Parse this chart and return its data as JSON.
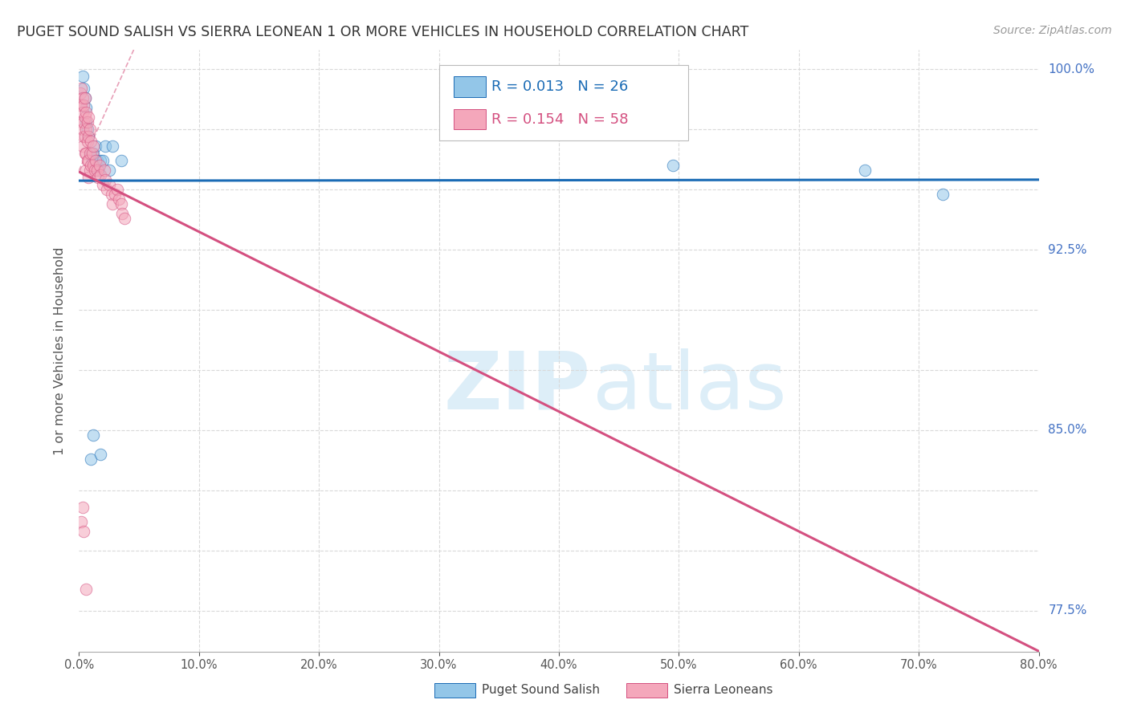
{
  "title": "PUGET SOUND SALISH VS SIERRA LEONEAN 1 OR MORE VEHICLES IN HOUSEHOLD CORRELATION CHART",
  "source": "Source: ZipAtlas.com",
  "ylabel": "1 or more Vehicles in Household",
  "R_blue": 0.013,
  "N_blue": 26,
  "R_pink": 0.154,
  "N_pink": 58,
  "blue_color": "#93c6e8",
  "pink_color": "#f4a7bb",
  "trendline_blue": "#1a6bb5",
  "trendline_pink": "#d45080",
  "diagonal_color": "#ddbbcc",
  "grid_color": "#d9d9d9",
  "axis_color": "#aaaaaa",
  "title_color": "#333333",
  "source_color": "#999999",
  "right_label_color": "#4472c4",
  "xlim": [
    0.0,
    0.8
  ],
  "ylim": [
    0.758,
    1.008
  ],
  "blue_scatter_x": [
    0.003,
    0.004,
    0.005,
    0.006,
    0.006,
    0.007,
    0.008,
    0.01,
    0.011,
    0.012,
    0.013,
    0.014,
    0.015,
    0.016,
    0.018,
    0.02,
    0.022,
    0.025,
    0.028,
    0.035,
    0.01,
    0.012,
    0.018,
    0.495,
    0.655,
    0.72
  ],
  "blue_scatter_y": [
    0.997,
    0.992,
    0.988,
    0.984,
    0.978,
    0.975,
    0.972,
    0.965,
    0.962,
    0.965,
    0.96,
    0.968,
    0.962,
    0.958,
    0.962,
    0.962,
    0.968,
    0.958,
    0.968,
    0.962,
    0.838,
    0.848,
    0.84,
    0.96,
    0.958,
    0.948
  ],
  "pink_scatter_x": [
    0.001,
    0.001,
    0.002,
    0.002,
    0.002,
    0.003,
    0.003,
    0.003,
    0.003,
    0.004,
    0.004,
    0.004,
    0.005,
    0.005,
    0.005,
    0.005,
    0.006,
    0.006,
    0.006,
    0.006,
    0.007,
    0.007,
    0.007,
    0.008,
    0.008,
    0.008,
    0.008,
    0.009,
    0.009,
    0.009,
    0.01,
    0.01,
    0.011,
    0.012,
    0.012,
    0.013,
    0.014,
    0.015,
    0.016,
    0.017,
    0.018,
    0.02,
    0.021,
    0.022,
    0.023,
    0.025,
    0.027,
    0.028,
    0.03,
    0.032,
    0.033,
    0.035,
    0.036,
    0.038,
    0.002,
    0.003,
    0.004,
    0.006
  ],
  "pink_scatter_y": [
    0.99,
    0.985,
    0.992,
    0.985,
    0.978,
    0.988,
    0.982,
    0.975,
    0.968,
    0.985,
    0.978,
    0.972,
    0.988,
    0.98,
    0.972,
    0.965,
    0.982,
    0.975,
    0.965,
    0.958,
    0.978,
    0.97,
    0.962,
    0.98,
    0.972,
    0.962,
    0.955,
    0.975,
    0.965,
    0.958,
    0.97,
    0.96,
    0.965,
    0.968,
    0.96,
    0.958,
    0.962,
    0.958,
    0.955,
    0.96,
    0.956,
    0.952,
    0.958,
    0.954,
    0.95,
    0.952,
    0.948,
    0.944,
    0.948,
    0.95,
    0.946,
    0.944,
    0.94,
    0.938,
    0.812,
    0.818,
    0.808,
    0.784
  ],
  "marker_size": 110,
  "alpha": 0.55
}
